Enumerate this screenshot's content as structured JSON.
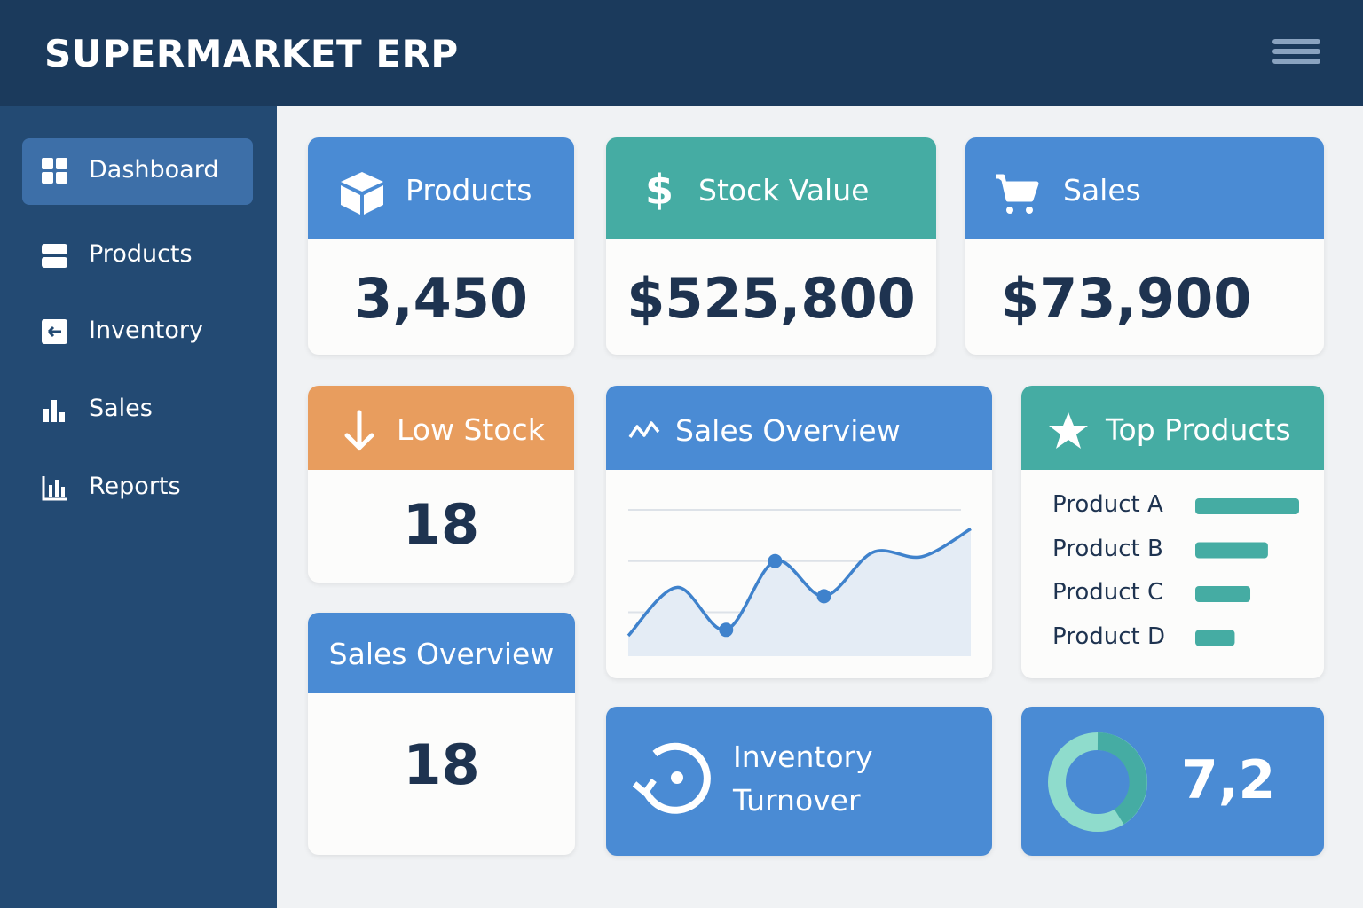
{
  "header": {
    "title": "SUPERMARKET ERP"
  },
  "nav": {
    "items": [
      {
        "label": "Dashboard",
        "active": true
      },
      {
        "label": "Products",
        "active": false
      },
      {
        "label": "Inventory",
        "active": false
      },
      {
        "label": "Sales",
        "active": false
      },
      {
        "label": "Reports",
        "active": false
      }
    ]
  },
  "cards": [
    {
      "title": "Products",
      "value": "3,450"
    },
    {
      "title": "Stock Value",
      "value": "$525,800"
    },
    {
      "title": "Sales",
      "value": "$73,900"
    },
    {
      "title": "Low Stock",
      "value": "18"
    },
    {
      "title": "Sales Overview",
      "value": "18"
    }
  ],
  "sales_overview": {
    "title": "Sales Overview",
    "chart_data": {
      "type": "line",
      "values": [
        14,
        47,
        18,
        65,
        41,
        71,
        68,
        87
      ],
      "markers": [
        2,
        3,
        4
      ],
      "ylim": [
        0,
        100
      ],
      "yticks": [
        30,
        65,
        100
      ]
    }
  },
  "top_products": {
    "title": "Top Products",
    "chart_data": {
      "type": "bar",
      "categories": [
        "Product A",
        "Product B",
        "Product C",
        "Product D"
      ],
      "values": [
        100,
        70,
        53,
        38
      ],
      "xlim": [
        0,
        100
      ]
    }
  },
  "turnover": {
    "title_lines": [
      "Inventory",
      "Turnover"
    ],
    "value": "7,2"
  }
}
